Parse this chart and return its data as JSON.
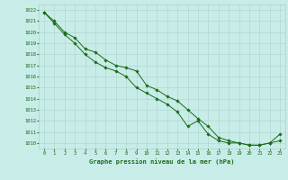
{
  "title": "Graphe pression niveau de la mer (hPa)",
  "bg_color": "#c8ece8",
  "grid_color": "#aad4cc",
  "line_color": "#1a6b1a",
  "marker_color": "#1a6b1a",
  "xlim": [
    -0.5,
    23.5
  ],
  "ylim": [
    1009.5,
    1022.5
  ],
  "xticks": [
    0,
    1,
    2,
    3,
    4,
    5,
    6,
    7,
    8,
    9,
    10,
    11,
    12,
    13,
    14,
    15,
    16,
    17,
    18,
    19,
    20,
    21,
    22,
    23
  ],
  "yticks": [
    1010,
    1011,
    1012,
    1013,
    1014,
    1015,
    1016,
    1017,
    1018,
    1019,
    1020,
    1021,
    1022
  ],
  "series1": [
    1021.8,
    1021.0,
    1020.0,
    1019.5,
    1018.5,
    1018.2,
    1017.5,
    1017.0,
    1016.8,
    1016.5,
    1015.2,
    1014.8,
    1014.2,
    1013.8,
    1013.0,
    1012.2,
    1011.5,
    1010.5,
    1010.2,
    1010.0,
    1009.8,
    1009.8,
    1010.0,
    1010.2
  ],
  "series2": [
    1021.8,
    1020.8,
    1019.8,
    1019.0,
    1018.0,
    1017.3,
    1016.8,
    1016.5,
    1016.0,
    1015.0,
    1014.5,
    1014.0,
    1013.5,
    1012.8,
    1011.5,
    1012.0,
    1010.8,
    1010.2,
    1010.0,
    1010.0,
    1009.8,
    1009.8,
    1010.0,
    1010.8
  ]
}
